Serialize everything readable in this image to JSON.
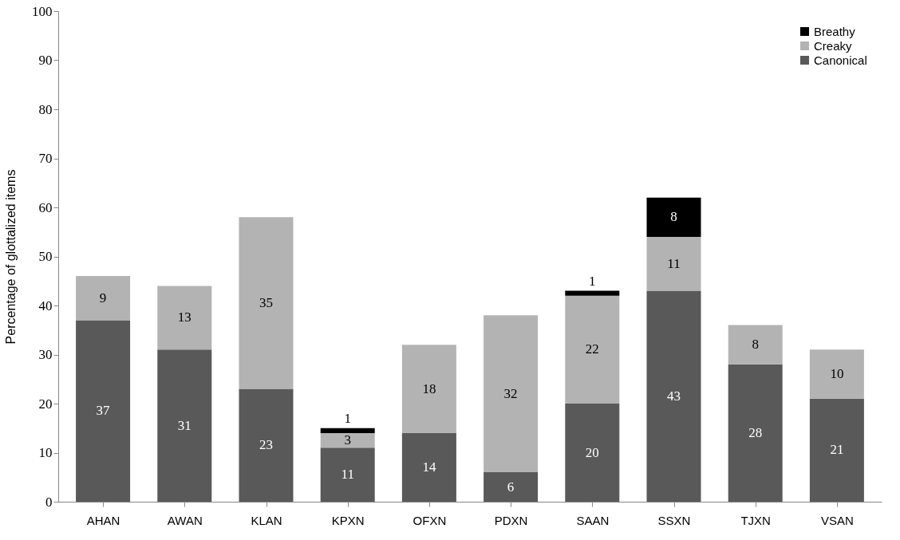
{
  "chart_data": {
    "type": "bar",
    "stacked": true,
    "ylabel": "Percentage of glottalized items",
    "categories": [
      "AHAN",
      "AWAN",
      "KLAN",
      "KPXN",
      "OFXN",
      "PDXN",
      "SAAN",
      "SSXN",
      "TJXN",
      "VSAN"
    ],
    "series": [
      {
        "name": "Canonical",
        "color": "#595959",
        "values": [
          37,
          31,
          23,
          11,
          14,
          6,
          20,
          43,
          28,
          21
        ]
      },
      {
        "name": "Creaky",
        "color": "#b3b3b3",
        "values": [
          9,
          13,
          35,
          3,
          18,
          32,
          22,
          11,
          8,
          10
        ]
      },
      {
        "name": "Breathy",
        "color": "#000000",
        "values": [
          null,
          null,
          null,
          1,
          null,
          null,
          1,
          8,
          null,
          null
        ]
      }
    ],
    "ylim": [
      0,
      100
    ],
    "yticks": [
      0,
      10,
      20,
      30,
      40,
      50,
      60,
      70,
      80,
      90,
      100
    ],
    "grid": false,
    "legend": "top right",
    "data_labels": true
  }
}
